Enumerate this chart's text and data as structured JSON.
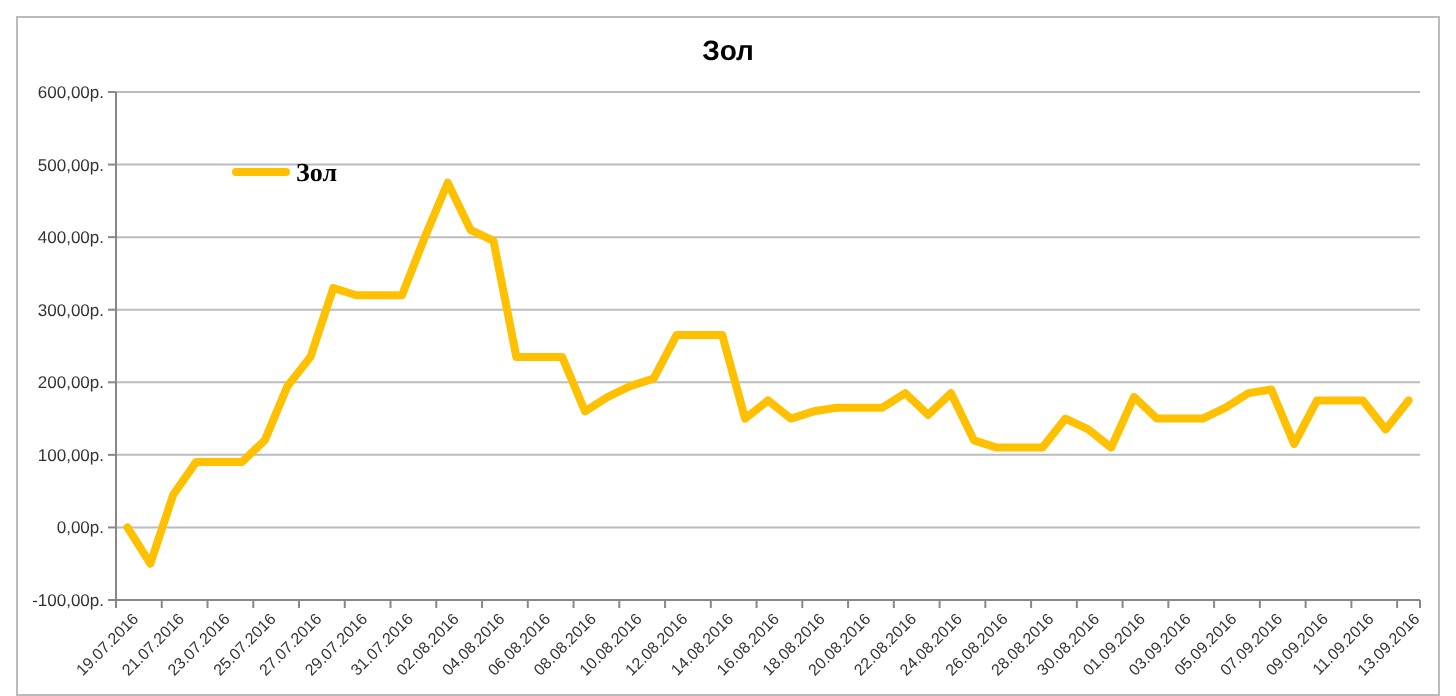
{
  "chart_data": {
    "type": "line",
    "title": "Зол",
    "categories": [
      "19.07.2016",
      null,
      "21.07.2016",
      null,
      "23.07.2016",
      null,
      "25.07.2016",
      null,
      "27.07.2016",
      null,
      "29.07.2016",
      null,
      "31.07.2016",
      null,
      "02.08.2016",
      null,
      "04.08.2016",
      null,
      "06.08.2016",
      null,
      "08.08.2016",
      null,
      "10.08.2016",
      null,
      "12.08.2016",
      null,
      "14.08.2016",
      null,
      "16.08.2016",
      null,
      "18.08.2016",
      null,
      "20.08.2016",
      null,
      "22.08.2016",
      null,
      "24.08.2016",
      null,
      "26.08.2016",
      null,
      "28.08.2016",
      null,
      "30.08.2016",
      null,
      "01.09.2016",
      null,
      "03.09.2016",
      null,
      "05.09.2016",
      null,
      "07.09.2016",
      null,
      "09.09.2016",
      null,
      "11.09.2016",
      null,
      "13.09.2016"
    ],
    "series": [
      {
        "name": "Зол",
        "color": "#ffc000",
        "values": [
          0,
          -50,
          45,
          90,
          90,
          90,
          120,
          195,
          235,
          330,
          320,
          320,
          320,
          400,
          475,
          410,
          395,
          235,
          235,
          235,
          160,
          180,
          195,
          205,
          265,
          265,
          265,
          150,
          175,
          150,
          160,
          165,
          165,
          165,
          185,
          155,
          185,
          120,
          110,
          110,
          110,
          150,
          135,
          110,
          180,
          150,
          150,
          150,
          165,
          185,
          190,
          115,
          175,
          175,
          175,
          135,
          175
        ]
      }
    ],
    "ylim": [
      -100,
      600
    ],
    "yticks": [
      {
        "value": -100,
        "label": "-100,00р."
      },
      {
        "value": 0,
        "label": "0,00р."
      },
      {
        "value": 100,
        "label": "100,00р."
      },
      {
        "value": 200,
        "label": "200,00р."
      },
      {
        "value": 300,
        "label": "300,00р."
      },
      {
        "value": 400,
        "label": "400,00р."
      },
      {
        "value": 500,
        "label": "500,00р."
      },
      {
        "value": 600,
        "label": "600,00р."
      }
    ],
    "grid": "y",
    "legend": "top left",
    "marker": "none",
    "line_style": "solid"
  }
}
